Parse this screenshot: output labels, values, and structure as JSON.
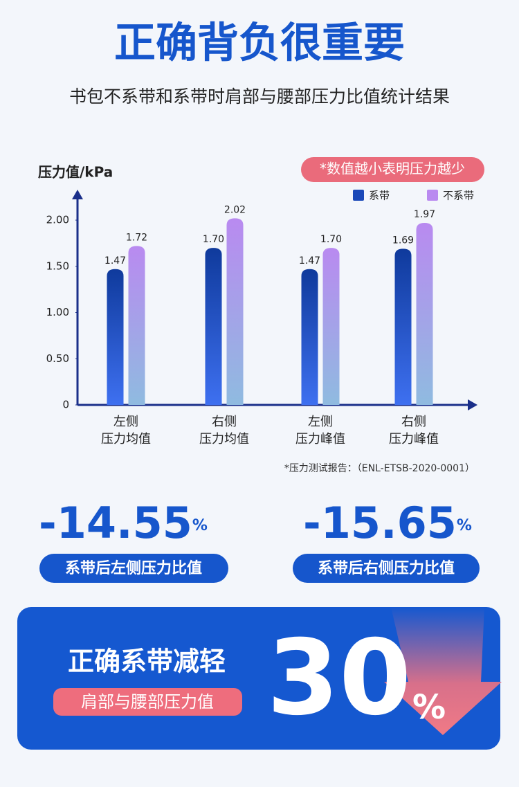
{
  "header": {
    "title": "正确背负很重要",
    "subtitle": "书包不系带和系带时肩部与腰部压力比值统计结果"
  },
  "chart_data": {
    "type": "bar",
    "ylabel": "压力值/kPa",
    "annotation": "*数值越小表明压力越少",
    "categories": [
      [
        "左侧",
        "压力均值"
      ],
      [
        "右侧",
        "压力均值"
      ],
      [
        "左侧",
        "压力峰值"
      ],
      [
        "右侧",
        "压力峰值"
      ]
    ],
    "series": [
      {
        "name": "系带",
        "color": "#0f3a9c",
        "values": [
          1.47,
          1.7,
          1.47,
          1.69
        ],
        "value_labels": [
          "1.47",
          "1.70",
          "1.47",
          "1.69"
        ]
      },
      {
        "name": "不系带",
        "color": "#b98af0",
        "values": [
          1.72,
          2.02,
          1.7,
          1.97
        ],
        "value_labels": [
          "1.72",
          "2.02",
          "1.70",
          "1.97"
        ]
      }
    ],
    "ylim": [
      0,
      2.3
    ],
    "yticks": [
      0,
      {
        "value": 0.5,
        "label": "0.50"
      },
      {
        "value": 1,
        "label": "1.00"
      },
      {
        "value": 1.5,
        "label": "1.50"
      },
      {
        "value": 2,
        "label": "2.00"
      }
    ],
    "source": "*压力测试报告：（ENL-ETSB-2020-0001）"
  },
  "stats": [
    {
      "value": "-14.55",
      "unit": "%",
      "label": "系带后左侧压力比值"
    },
    {
      "value": "-15.65",
      "unit": "%",
      "label": "系带后右侧压力比值"
    }
  ],
  "banner": {
    "title": "正确系带减轻",
    "subtitle": "肩部与腰部压力值",
    "value": "30",
    "unit": "%"
  }
}
